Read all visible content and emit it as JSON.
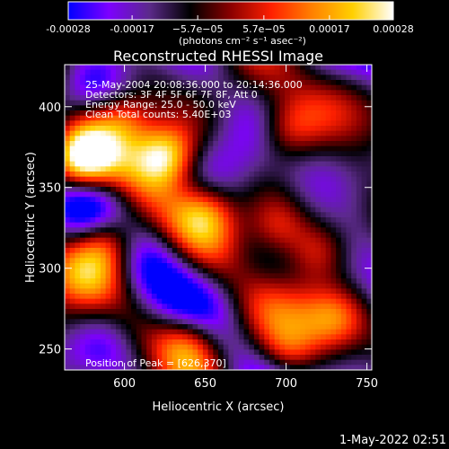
{
  "colorbar": {
    "tick_labels": [
      "-0.00028",
      "-0.00017",
      "−5.7e−05",
      "5.7e−05",
      "0.00017",
      "0.00028"
    ],
    "tick_values": [
      -0.00028,
      -0.00017,
      -5.7e-05,
      5.7e-05,
      0.00017,
      0.00028
    ],
    "range": [
      -0.00028,
      0.00028
    ],
    "unit_text": "(photons cm⁻² s⁻¹ asec⁻²)"
  },
  "chart_data": {
    "type": "heatmap",
    "title": "Reconstructed RHESSI Image",
    "xlabel": "Heliocentric X (arcsec)",
    "ylabel": "Heliocentric Y (arcsec)",
    "xlim": [
      563,
      753
    ],
    "ylim": [
      237,
      426
    ],
    "xticks": [
      600,
      650,
      700,
      750
    ],
    "yticks": [
      250,
      300,
      350,
      400
    ],
    "colormap": [
      "#0000ff",
      "#7d00ff",
      "#5b2a8a",
      "#000000",
      "#8b0000",
      "#ff2000",
      "#ff8000",
      "#ffd000",
      "#ffffff"
    ],
    "bright_regions": [
      {
        "x": 626,
        "y": 370,
        "level": 1.0
      },
      {
        "x": 572,
        "y": 366,
        "level": 0.85
      },
      {
        "x": 600,
        "y": 395,
        "level": 0.6
      },
      {
        "x": 590,
        "y": 318,
        "level": 0.75
      },
      {
        "x": 650,
        "y": 335,
        "level": 0.6
      },
      {
        "x": 695,
        "y": 325,
        "level": 0.55
      },
      {
        "x": 720,
        "y": 310,
        "level": 0.5
      },
      {
        "x": 700,
        "y": 385,
        "level": 0.5
      },
      {
        "x": 640,
        "y": 255,
        "level": 0.55
      },
      {
        "x": 700,
        "y": 245,
        "level": 0.5
      },
      {
        "x": 730,
        "y": 270,
        "level": 0.45
      },
      {
        "x": 570,
        "y": 260,
        "level": 0.35
      }
    ],
    "annotations": {
      "time": "25-May-2004 20:08:36.000 to 20:14:36.000",
      "detectors": "Detectors: 3F 4F 5F 6F 7F 8F, Att 0",
      "energy": "Energy Range: 25.0 - 50.0 keV",
      "clean": "Clean     Total counts: 5.40E+03",
      "peak": "Position of Peak = [626,370]"
    }
  },
  "footer": {
    "timestamp": "1-May-2022 02:51"
  }
}
